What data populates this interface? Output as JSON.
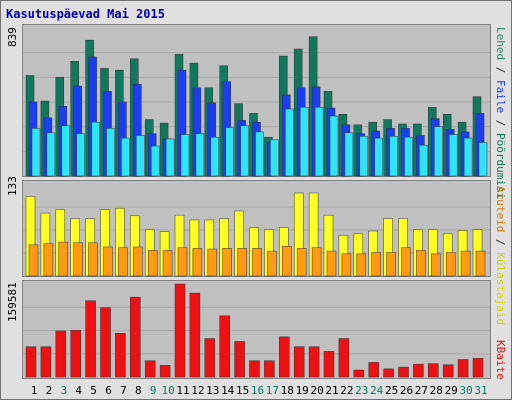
{
  "title": "Kasutuspäevad Mai 2015",
  "colors": {
    "pages": "#11775d",
    "hits": "#1a3ef0",
    "files": "#2ee4f8",
    "visits": "#ffff22",
    "sites": "#ff9a12",
    "kbytes": "#ee1111",
    "weekday_label": "#000000",
    "weekend_label": "#00806a",
    "title": "#0000b0"
  },
  "labels": {
    "ymax_top": "839",
    "ymax_mid": "133",
    "ymax_bottom": "159581",
    "right_top": {
      "part1": "Lehed",
      "part2": "Faile",
      "part3": "Pöördumisi",
      "sep1": " / ",
      "sep2": " / "
    },
    "right_mid": {
      "part1": "Aruteid",
      "part2": "Külastajaid",
      "sep": " / "
    },
    "right_bottom": "KBaite"
  },
  "chart_data": [
    {
      "type": "bar",
      "title": "Pöördumisi / Faile / Lehed",
      "categories": [
        "1",
        "2",
        "3",
        "4",
        "5",
        "6",
        "7",
        "8",
        "9",
        "10",
        "11",
        "12",
        "13",
        "14",
        "15",
        "16",
        "17",
        "18",
        "19",
        "20",
        "21",
        "22",
        "23",
        "24",
        "25",
        "26",
        "27",
        "28",
        "29",
        "30",
        "31"
      ],
      "ylim": [
        0,
        839
      ],
      "series": [
        {
          "name": "Pöördumisi",
          "values": [
            570,
            425,
            560,
            650,
            770,
            610,
            600,
            665,
            320,
            300,
            690,
            640,
            500,
            625,
            410,
            355,
            220,
            680,
            720,
            790,
            480,
            350,
            290,
            305,
            320,
            295,
            295,
            390,
            350,
            305,
            450
          ]
        },
        {
          "name": "Faile",
          "values": [
            420,
            330,
            395,
            510,
            675,
            480,
            420,
            520,
            240,
            210,
            600,
            500,
            415,
            535,
            315,
            305,
            190,
            460,
            500,
            505,
            385,
            290,
            240,
            255,
            270,
            270,
            230,
            325,
            265,
            250,
            355
          ]
        },
        {
          "name": "Lehed",
          "values": [
            270,
            245,
            285,
            240,
            305,
            270,
            215,
            230,
            170,
            210,
            235,
            240,
            220,
            275,
            285,
            250,
            205,
            380,
            390,
            390,
            340,
            245,
            225,
            215,
            225,
            220,
            175,
            280,
            235,
            215,
            190
          ]
        }
      ]
    },
    {
      "type": "bar",
      "title": "Külastajaid / Aruteid",
      "categories": [
        "1",
        "2",
        "3",
        "4",
        "5",
        "6",
        "7",
        "8",
        "9",
        "10",
        "11",
        "12",
        "13",
        "14",
        "15",
        "16",
        "17",
        "18",
        "19",
        "20",
        "21",
        "22",
        "23",
        "24",
        "25",
        "26",
        "27",
        "28",
        "29",
        "30",
        "31"
      ],
      "ylim": [
        0,
        133
      ],
      "series": [
        {
          "name": "Külastajaid",
          "values": [
            115,
            91,
            96,
            83,
            83,
            96,
            98,
            87,
            67,
            64,
            88,
            81,
            81,
            83,
            94,
            70,
            67,
            70,
            120,
            120,
            88,
            59,
            61,
            65,
            83,
            83,
            67,
            67,
            61,
            66,
            67
          ]
        },
        {
          "name": "Aruteid",
          "values": [
            45,
            47,
            49,
            48,
            48,
            42,
            41,
            42,
            37,
            37,
            41,
            40,
            39,
            40,
            40,
            40,
            36,
            43,
            40,
            41,
            36,
            32,
            32,
            34,
            34,
            41,
            37,
            32,
            34,
            36,
            36
          ]
        }
      ]
    },
    {
      "type": "bar",
      "title": "KBaite",
      "categories": [
        "1",
        "2",
        "3",
        "4",
        "5",
        "6",
        "7",
        "8",
        "9",
        "10",
        "11",
        "12",
        "13",
        "14",
        "15",
        "16",
        "17",
        "18",
        "19",
        "20",
        "21",
        "22",
        "23",
        "24",
        "25",
        "26",
        "27",
        "28",
        "29",
        "30",
        "31"
      ],
      "ylim": [
        0,
        159581
      ],
      "series": [
        {
          "name": "KBaite",
          "values": [
            52000,
            52000,
            79000,
            80000,
            131000,
            119000,
            75000,
            137000,
            28000,
            20000,
            159581,
            144000,
            66000,
            105000,
            61000,
            28000,
            28000,
            69000,
            52000,
            52000,
            44000,
            66000,
            12000,
            25000,
            14000,
            17000,
            22000,
            23000,
            21000,
            30000,
            32000
          ]
        }
      ]
    }
  ],
  "weekend_days": [
    3,
    9,
    10,
    16,
    17,
    23,
    24,
    30,
    31
  ]
}
